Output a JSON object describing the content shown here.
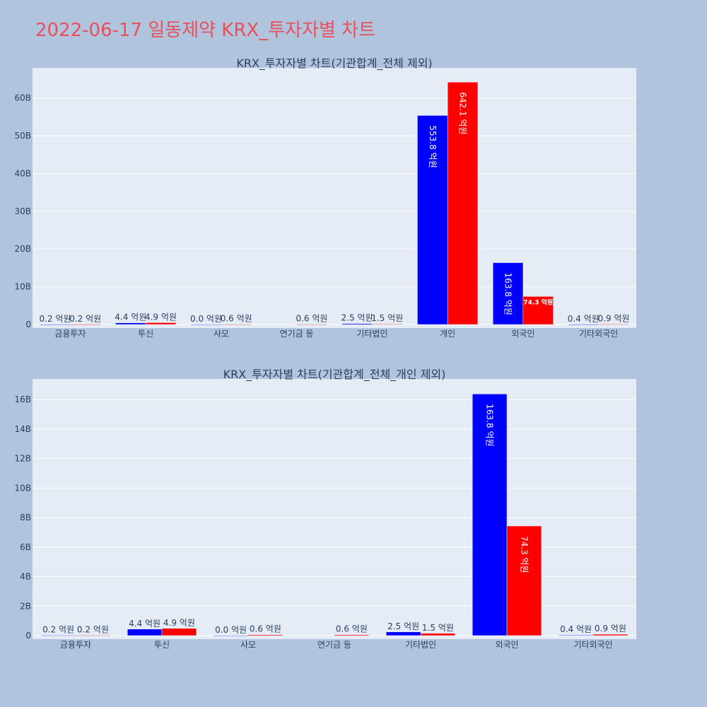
{
  "title": "2022-06-17 일동제약 KRX_투자자별 차트",
  "colors": {
    "series1": "#0000ff",
    "series2": "#ff0000",
    "plot_bg": "#e5ecf6",
    "page_bg": "#b0c4de"
  },
  "chart_data": [
    {
      "type": "bar",
      "title": "KRX_투자자별 차트(기관합계_전체 제외)",
      "categories": [
        "금융투자",
        "투신",
        "사모",
        "연기금 등",
        "기타법인",
        "개인",
        "외국인",
        "기타외국인"
      ],
      "ylim": [
        0,
        68
      ],
      "yticks": [
        0,
        10,
        20,
        30,
        40,
        50,
        60
      ],
      "ytick_labels": [
        "0",
        "10B",
        "20B",
        "30B",
        "40B",
        "50B",
        "60B"
      ],
      "grid": true,
      "series": [
        {
          "values": [
            0.02,
            0.44,
            0.0,
            null,
            0.25,
            55.38,
            16.38,
            0.04
          ],
          "labels": [
            "0.2 억원",
            "4.4 억원",
            "0.0 억원",
            "",
            "2.5 억원",
            "553.8 억원",
            "163.8 억원",
            "0.4 억원"
          ]
        },
        {
          "values": [
            0.02,
            0.49,
            0.06,
            0.06,
            0.15,
            64.21,
            7.43,
            0.09
          ],
          "labels": [
            "0.2 억원",
            "4.9 억원",
            "0.6 억원",
            "0.6 억원",
            "1.5 억원",
            "642.1 억원",
            "74.3 억원",
            "0.9 억원"
          ]
        }
      ]
    },
    {
      "type": "bar",
      "title": "KRX_투자자별 차트(기관합계_전체_개인 제외)",
      "categories": [
        "금융투자",
        "투신",
        "사모",
        "연기금 등",
        "기타법인",
        "외국인",
        "기타외국인"
      ],
      "ylim": [
        0,
        17.4
      ],
      "yticks": [
        0,
        2,
        4,
        6,
        8,
        10,
        12,
        14,
        16
      ],
      "ytick_labels": [
        "0",
        "2B",
        "4B",
        "6B",
        "8B",
        "10B",
        "12B",
        "14B",
        "16B"
      ],
      "grid": true,
      "series": [
        {
          "values": [
            0.02,
            0.44,
            0.0,
            null,
            0.25,
            16.38,
            0.04
          ],
          "labels": [
            "0.2 억원",
            "4.4 억원",
            "0.0 억원",
            "",
            "2.5 억원",
            "163.8 억원",
            "0.4 억원"
          ]
        },
        {
          "values": [
            0.02,
            0.49,
            0.06,
            0.06,
            0.15,
            7.43,
            0.09
          ],
          "labels": [
            "0.2 억원",
            "4.9 억원",
            "0.6 억원",
            "0.6 억원",
            "1.5 억원",
            "74.3 억원",
            "0.9 억원"
          ]
        }
      ]
    }
  ]
}
